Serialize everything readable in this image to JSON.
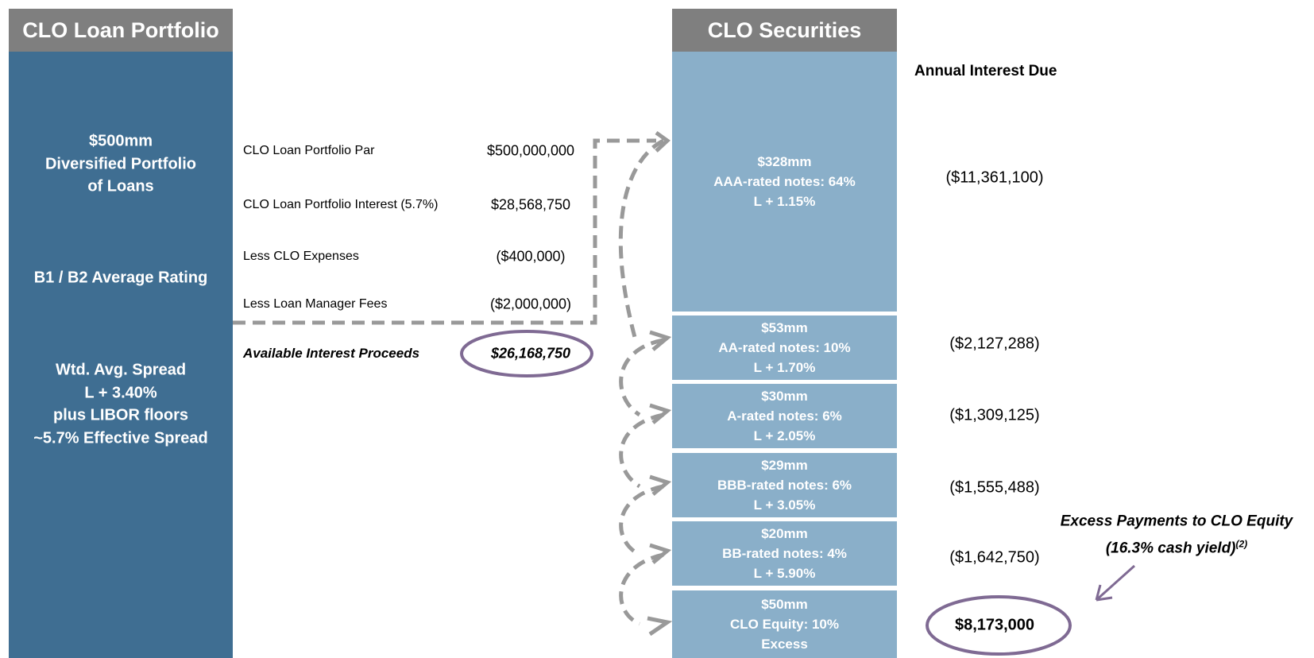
{
  "loan_portfolio": {
    "title": "CLO Loan Portfolio",
    "lines": [
      "$500mm",
      "Diversified Portfolio",
      "of Loans"
    ],
    "rating": "B1 / B2 Average Rating",
    "spread_lines": [
      "Wtd. Avg. Spread",
      "L + 3.40%",
      "plus LIBOR floors",
      "~5.7% Effective Spread"
    ]
  },
  "waterfall": {
    "rows": [
      {
        "label": "CLO Loan Portfolio Par",
        "value": "$500,000,000"
      },
      {
        "label": "CLO Loan Portfolio Interest (5.7%)",
        "value": "$28,568,750"
      },
      {
        "label": "Less CLO Expenses",
        "value": "($400,000)"
      },
      {
        "label": "Less Loan Manager Fees",
        "value": "($2,000,000)"
      }
    ],
    "total": {
      "label": "Available Interest Proceeds",
      "value": "$26,168,750"
    }
  },
  "securities": {
    "title": "CLO Securities",
    "interest_header": "Annual Interest Due",
    "tranches": [
      {
        "amount": "$328mm",
        "name": "AAA-rated notes: 64%",
        "spread": "L + 1.15%",
        "interest": "($11,361,100)"
      },
      {
        "amount": "$53mm",
        "name": "AA-rated notes: 10%",
        "spread": "L + 1.70%",
        "interest": "($2,127,288)"
      },
      {
        "amount": "$30mm",
        "name": "A-rated notes: 6%",
        "spread": "L + 2.05%",
        "interest": "($1,309,125)"
      },
      {
        "amount": "$29mm",
        "name": "BBB-rated notes: 6%",
        "spread": "L + 3.05%",
        "interest": "($1,555,488)"
      },
      {
        "amount": "$20mm",
        "name": "BB-rated notes: 4%",
        "spread": "L + 5.90%",
        "interest": "($1,642,750)"
      },
      {
        "amount": "$50mm",
        "name": "CLO Equity: 10%",
        "spread": "Excess",
        "interest": "$8,173,000"
      }
    ],
    "excess_note": {
      "line1": "Excess Payments to CLO Equity",
      "line2": "(16.3% cash yield)",
      "footnote": "(2)"
    }
  }
}
